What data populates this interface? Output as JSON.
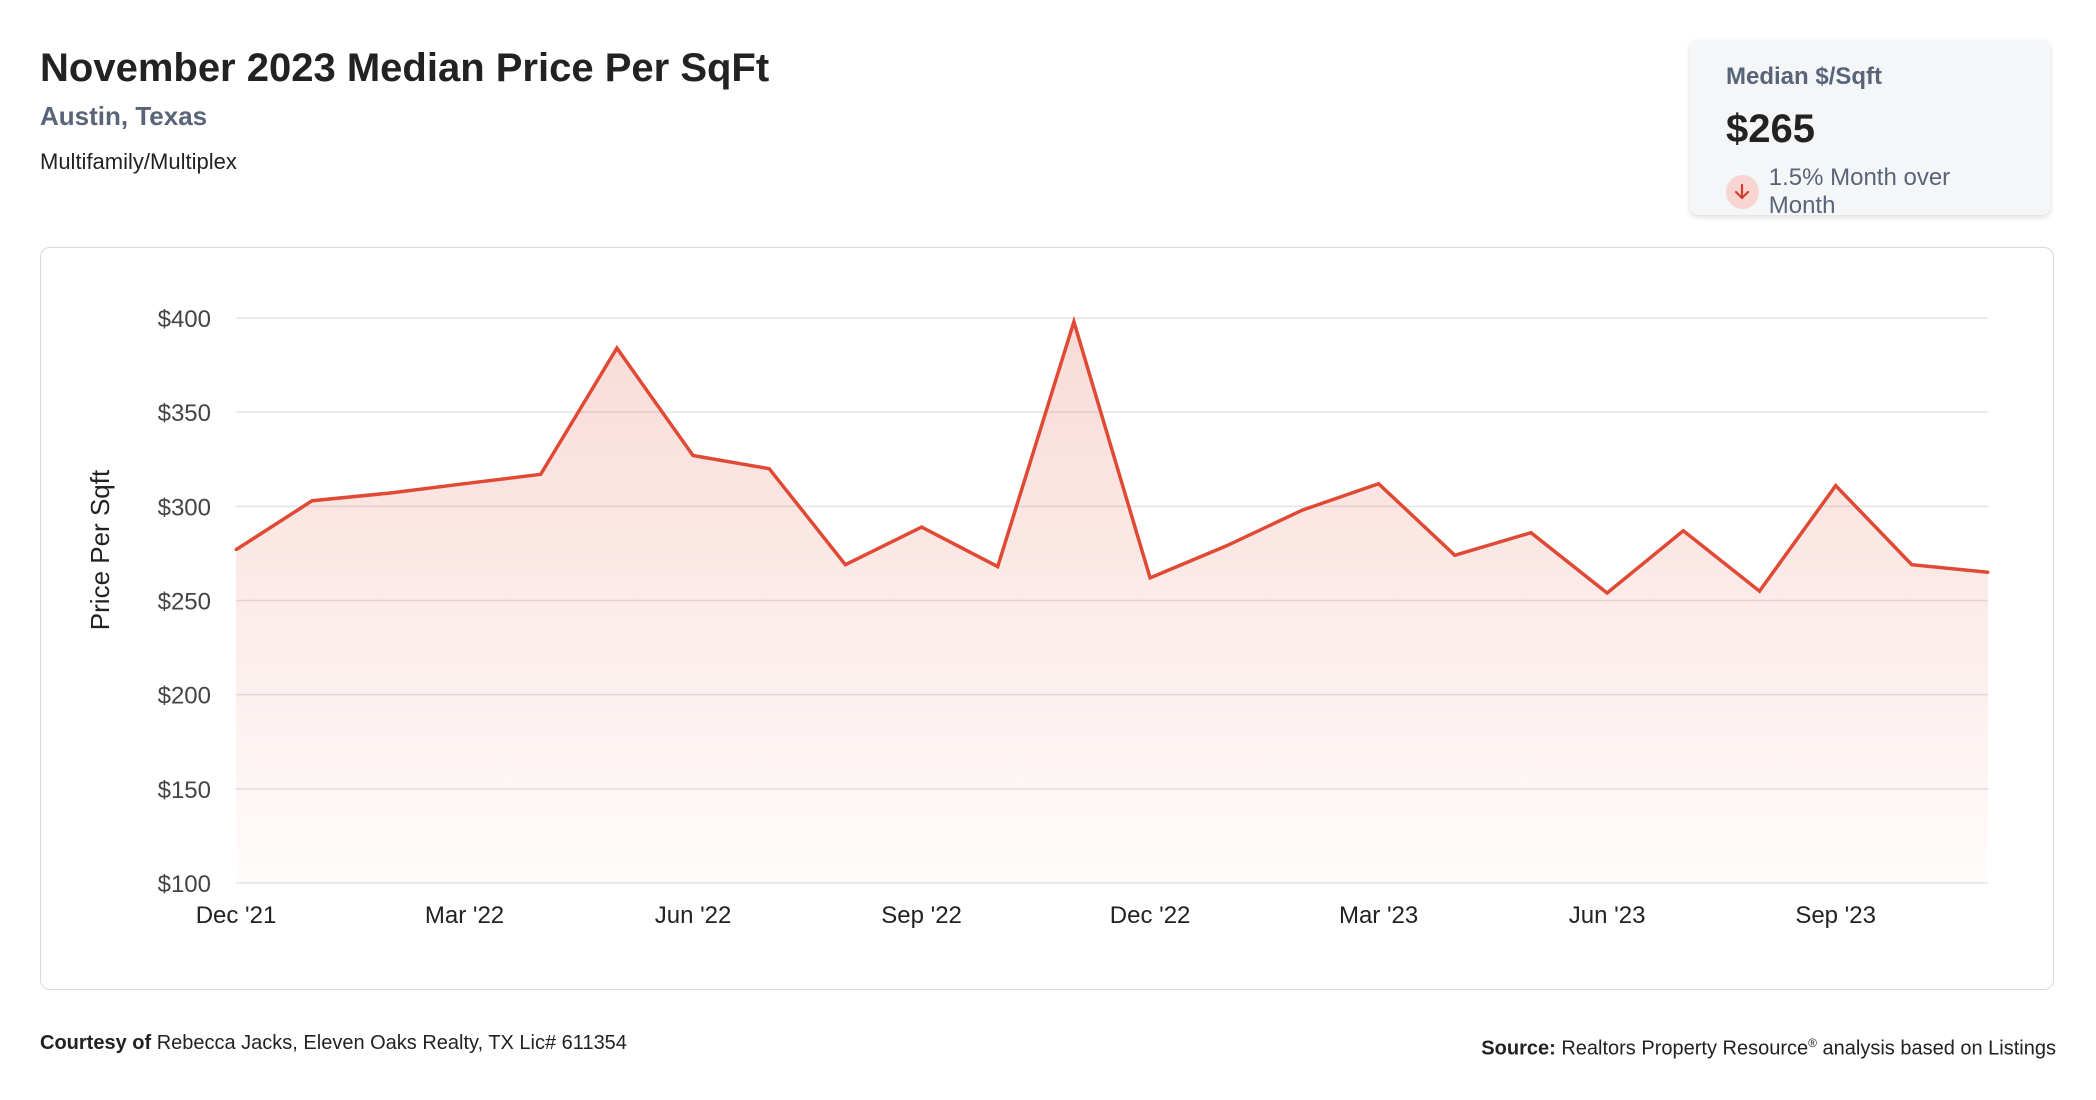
{
  "header": {
    "title": "November 2023 Median Price Per SqFt",
    "location": "Austin, Texas",
    "property_type": "Multifamily/Multiplex"
  },
  "stat_card": {
    "label": "Median $/Sqft",
    "value": "$265",
    "change": "1.5% Month over Month",
    "direction_icon": "arrow-down-icon",
    "accent_color": "#e04a35"
  },
  "chart_data": {
    "type": "area",
    "ylabel": "Price Per Sqft",
    "ylim": [
      100,
      400
    ],
    "yticks": [
      100,
      150,
      200,
      250,
      300,
      350,
      400
    ],
    "ytick_labels": [
      "$100",
      "$150",
      "$200",
      "$250",
      "$300",
      "$350",
      "$400"
    ],
    "xtick_labels": [
      "Dec '21",
      "Mar '22",
      "Jun '22",
      "Sep '22",
      "Dec '22",
      "Mar '23",
      "Jun '23",
      "Sep '23"
    ],
    "x": [
      "Dec '21",
      "Jan '22",
      "Feb '22",
      "Mar '22",
      "Apr '22",
      "May '22",
      "Jun '22",
      "Jul '22",
      "Aug '22",
      "Sep '22",
      "Oct '22",
      "Nov '22",
      "Dec '22",
      "Jan '23",
      "Feb '23",
      "Mar '23",
      "Apr '23",
      "May '23",
      "Jun '23",
      "Jul '23",
      "Aug '23",
      "Sep '23",
      "Oct '23",
      "Nov '23"
    ],
    "values": [
      277,
      303,
      307,
      312,
      317,
      384,
      327,
      320,
      269,
      289,
      268,
      398,
      262,
      279,
      298,
      312,
      274,
      286,
      254,
      287,
      255,
      311,
      269,
      265
    ],
    "line_color": "#e04a35",
    "grid": true
  },
  "footer": {
    "courtesy_label": "Courtesy of",
    "courtesy_text": "Rebecca Jacks, Eleven Oaks Realty, TX Lic# 611354",
    "source_label": "Source:",
    "source_text_1": "Realtors Property Resource",
    "source_sup": "®",
    "source_text_2": "analysis based on Listings"
  }
}
